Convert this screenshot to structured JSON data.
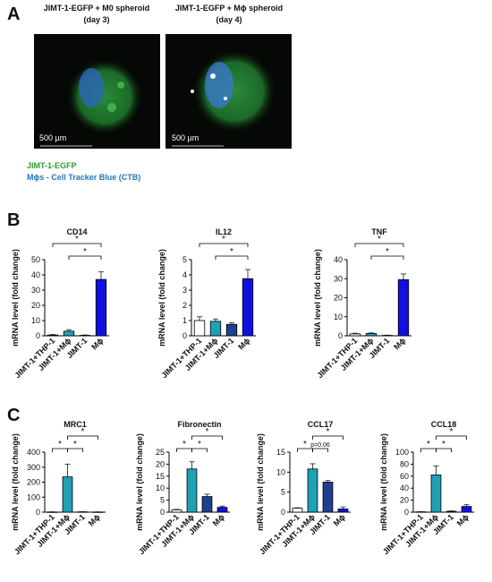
{
  "panel_labels": [
    "A",
    "B",
    "C"
  ],
  "images": [
    {
      "title": "JIMT-1-EGFP + M0 spheroid",
      "subtitle": "(day 3)",
      "scale_bar": "500 µm"
    },
    {
      "title": "JIMT-1-EGFP + Mϕ spheroid",
      "subtitle": "(day 4)",
      "scale_bar": "500 µm"
    }
  ],
  "legend": [
    "JIMT-1-EGFP",
    "Mϕs - Cell Tracker Blue (CTB)"
  ],
  "chart_data": [
    {
      "type": "bar",
      "title": "CD14",
      "y_label": "mRNA level (fold change)",
      "categories": [
        "JIMT-1+THP-1",
        "JIMT-1+Mϕ",
        "JIMT-1",
        "Mϕ"
      ],
      "values": [
        0.5,
        3,
        0.3,
        37
      ],
      "errors": [
        0.3,
        1,
        0.2,
        5
      ],
      "colors": [
        "#ffffff",
        "#1fa0b5",
        "#1f3f8f",
        "#1010e0"
      ],
      "ylim": [
        0,
        50
      ],
      "yticks": [
        0,
        10,
        20,
        30,
        40,
        50
      ],
      "brackets": [
        {
          "label": "*",
          "from": "JIMT-1+THP-1",
          "to": "Mϕ"
        },
        {
          "label": "*",
          "from": "JIMT-1+Mϕ",
          "to": "Mϕ"
        }
      ]
    },
    {
      "type": "bar",
      "title": "IL12",
      "y_label": "mRNA level (fold change)",
      "categories": [
        "JIMT-1+THP-1",
        "JIMT-1+Mϕ",
        "JIMT-1",
        "Mϕ"
      ],
      "values": [
        1,
        0.95,
        0.75,
        3.75
      ],
      "errors": [
        0.25,
        0.15,
        0.1,
        0.6
      ],
      "colors": [
        "#ffffff",
        "#1fa0b5",
        "#1f3f8f",
        "#1010e0"
      ],
      "ylim": [
        0,
        5
      ],
      "yticks": [
        0,
        1,
        2,
        3,
        4,
        5
      ],
      "brackets": [
        {
          "label": "*",
          "from": "JIMT-1+THP-1",
          "to": "Mϕ"
        },
        {
          "label": "*",
          "from": "JIMT-1+Mϕ",
          "to": "Mϕ"
        }
      ]
    },
    {
      "type": "bar",
      "title": "TNF",
      "y_label": "mRNA level (fold change)",
      "categories": [
        "JIMT-1+THP-1",
        "JIMT-1+Mϕ",
        "JIMT-1",
        "Mϕ"
      ],
      "values": [
        1,
        1.2,
        0.2,
        29.5
      ],
      "errors": [
        0.3,
        0.3,
        0.1,
        3
      ],
      "colors": [
        "#ffffff",
        "#1fa0b5",
        "#1f3f8f",
        "#1010e0"
      ],
      "ylim": [
        0,
        40
      ],
      "yticks": [
        0,
        10,
        20,
        30,
        40
      ],
      "brackets": [
        {
          "label": "*",
          "from": "JIMT-1+THP-1",
          "to": "Mϕ"
        },
        {
          "label": "*",
          "from": "JIMT-1+Mϕ",
          "to": "Mϕ"
        }
      ]
    },
    {
      "type": "bar",
      "title": "MRC1",
      "y_label": "mRNA level (fold change)",
      "categories": [
        "JIMT-1+THP-1",
        "JIMT-1+Mϕ",
        "JIMT-1",
        "Mϕ"
      ],
      "values": [
        1,
        235,
        2,
        1
      ],
      "errors": [
        0.5,
        85,
        1,
        0.5
      ],
      "colors": [
        "#ffffff",
        "#1fa0b5",
        "#1f3f8f",
        "#1010e0"
      ],
      "ylim": [
        0,
        400
      ],
      "yticks": [
        0,
        100,
        200,
        300,
        400
      ],
      "brackets": [
        {
          "label": "*",
          "from": "JIMT-1+THP-1",
          "to": "JIMT-1+Mϕ"
        },
        {
          "label": "*",
          "from": "JIMT-1+Mϕ",
          "to": "JIMT-1"
        },
        {
          "label": "*",
          "from": "JIMT-1+Mϕ",
          "to": "Mϕ"
        }
      ]
    },
    {
      "type": "bar",
      "title": "Fibronectin",
      "y_label": "mRNA level (fold change)",
      "categories": [
        "JIMT-1+THP-1",
        "JIMT-1+Mϕ",
        "JIMT-1",
        "Mϕ"
      ],
      "values": [
        1,
        18,
        6.5,
        2
      ],
      "errors": [
        0.2,
        3,
        1,
        0.5
      ],
      "colors": [
        "#ffffff",
        "#1fa0b5",
        "#1f3f8f",
        "#1010e0"
      ],
      "ylim": [
        0,
        25
      ],
      "yticks": [
        0,
        5,
        10,
        15,
        20,
        25
      ],
      "brackets": [
        {
          "label": "*",
          "from": "JIMT-1+THP-1",
          "to": "JIMT-1+Mϕ"
        },
        {
          "label": "*",
          "from": "JIMT-1+Mϕ",
          "to": "JIMT-1"
        },
        {
          "label": "*",
          "from": "JIMT-1+Mϕ",
          "to": "Mϕ"
        }
      ]
    },
    {
      "type": "bar",
      "title": "CCL17",
      "y_label": "mRNA level (fold change)",
      "categories": [
        "JIMT-1+THP-1",
        "JIMT-1+Mϕ",
        "JIMT-1",
        "Mϕ"
      ],
      "values": [
        1,
        10.8,
        7.5,
        0.8
      ],
      "errors": [
        0.1,
        1.3,
        0.4,
        0.5
      ],
      "colors": [
        "#ffffff",
        "#1fa0b5",
        "#1f3f8f",
        "#1010e0"
      ],
      "ylim": [
        0,
        15
      ],
      "yticks": [
        0,
        5,
        10,
        15
      ],
      "brackets": [
        {
          "label": "*",
          "from": "JIMT-1+THP-1",
          "to": "JIMT-1+Mϕ"
        },
        {
          "label": "p=0.06",
          "from": "JIMT-1+Mϕ",
          "to": "JIMT-1"
        },
        {
          "label": "*",
          "from": "JIMT-1+Mϕ",
          "to": "Mϕ"
        }
      ]
    },
    {
      "type": "bar",
      "title": "CCL18",
      "y_label": "mRNA level (fold change)",
      "categories": [
        "JIMT-1+THP-1",
        "JIMT-1+Mϕ",
        "JIMT-1",
        "Mϕ"
      ],
      "values": [
        0.5,
        62,
        1.5,
        9.5
      ],
      "errors": [
        0.2,
        15,
        0.5,
        3
      ],
      "colors": [
        "#ffffff",
        "#1fa0b5",
        "#1f3f8f",
        "#1010e0"
      ],
      "ylim": [
        0,
        100
      ],
      "yticks": [
        0,
        20,
        40,
        60,
        80,
        100
      ],
      "brackets": [
        {
          "label": "*",
          "from": "JIMT-1+THP-1",
          "to": "JIMT-1+Mϕ"
        },
        {
          "label": "*",
          "from": "JIMT-1+Mϕ",
          "to": "JIMT-1"
        },
        {
          "label": "*",
          "from": "JIMT-1+Mϕ",
          "to": "Mϕ"
        }
      ]
    }
  ]
}
